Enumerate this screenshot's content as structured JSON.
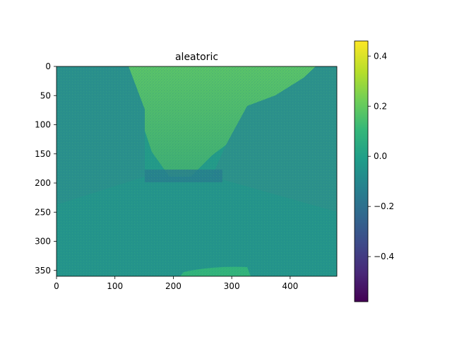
{
  "chart_data": {
    "type": "heatmap",
    "title": "aleatoric",
    "x_ticks": [
      "0",
      "100",
      "200",
      "300",
      "400"
    ],
    "y_ticks": [
      "0",
      "50",
      "100",
      "150",
      "200",
      "250",
      "300",
      "350"
    ],
    "x_tick_values": [
      0,
      100,
      200,
      300,
      400
    ],
    "y_tick_values": [
      0,
      50,
      100,
      150,
      200,
      250,
      300,
      350
    ],
    "xlim": [
      0,
      480
    ],
    "ylim": [
      360,
      0
    ],
    "y_inverted": true,
    "colorbar": {
      "colormap": "viridis",
      "range": [
        -0.58,
        0.46
      ],
      "ticks": [
        "0.4",
        "0.2",
        "0.0",
        "−0.2",
        "−0.4"
      ],
      "tick_values": [
        0.4,
        0.2,
        0.0,
        -0.2,
        -0.4
      ]
    },
    "image_description_values": {
      "sky_value": 0.15,
      "building_value": 0.02,
      "road_value": 0.0
    }
  },
  "colors": {
    "viridis_stops": [
      "#440154",
      "#482878",
      "#3e4989",
      "#31688e",
      "#26828e",
      "#1f9e89",
      "#35b779",
      "#6ece58",
      "#b5de2b",
      "#fde725"
    ]
  }
}
